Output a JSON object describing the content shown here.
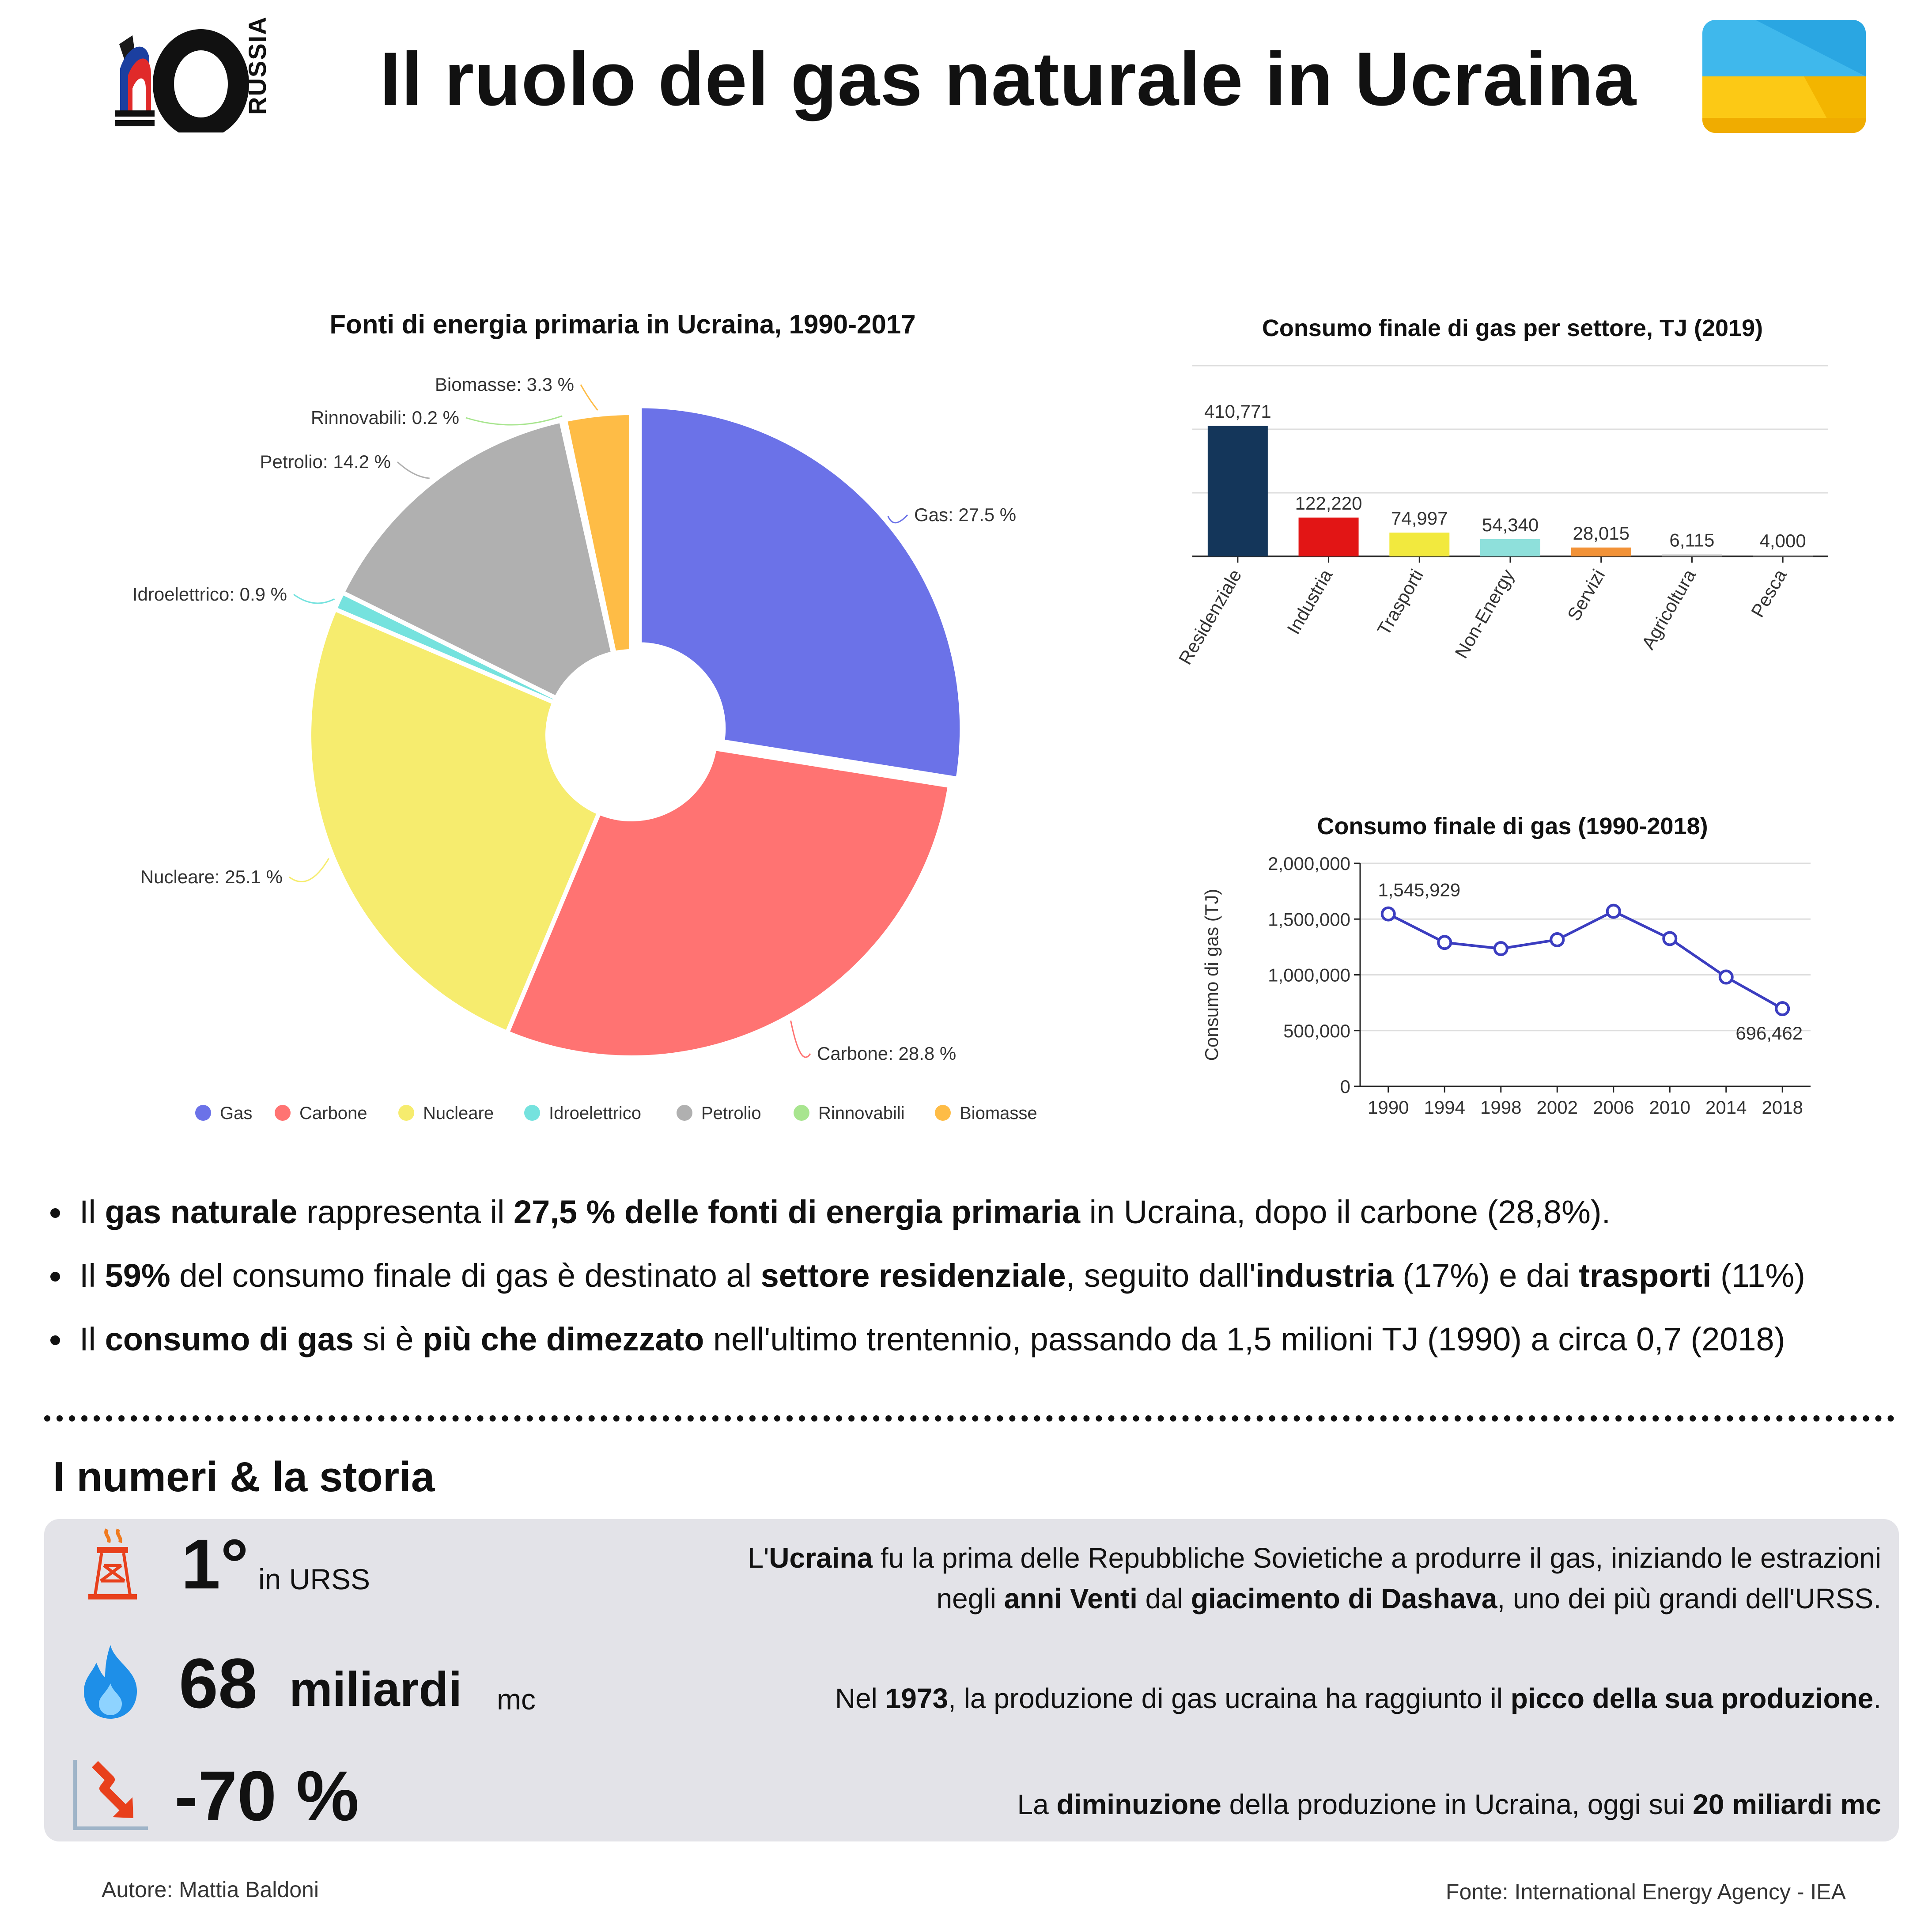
{
  "header": {
    "title": "Il ruolo del gas naturale in Ucraina",
    "logo_text": "RUSSIA",
    "flag_colors": [
      "#3FB8EC",
      "#FCC915"
    ]
  },
  "chart_data": [
    {
      "type": "pie",
      "title": "Fonti di energia primaria in Ucraina, 1990-2017",
      "legend_position": "bottom",
      "slices": [
        {
          "name": "Gas",
          "value": 27.5,
          "label": "Gas: 27.5 %",
          "color": "#6B72E8"
        },
        {
          "name": "Carbone",
          "value": 28.8,
          "label": "Carbone: 28.8 %",
          "color": "#FF7372"
        },
        {
          "name": "Nucleare",
          "value": 25.1,
          "label": "Nucleare: 25.1 %",
          "color": "#F6EC6E"
        },
        {
          "name": "Idroelettrico",
          "value": 0.9,
          "label": "Idroelettrico: 0.9 %",
          "color": "#75E2DE"
        },
        {
          "name": "Petrolio",
          "value": 14.2,
          "label": "Petrolio: 14.2 %",
          "color": "#B0B0B0"
        },
        {
          "name": "Rinnovabili",
          "value": 0.2,
          "label": "Rinnovabili: 0.2 %",
          "color": "#A8E58F"
        },
        {
          "name": "Biomasse",
          "value": 3.3,
          "label": "Biomasse: 3.3 %",
          "color": "#FEBC46"
        }
      ]
    },
    {
      "type": "bar",
      "title": "Consumo finale di gas per settore, TJ (2019)",
      "categories": [
        "Residenziale",
        "Industria",
        "Trasporti",
        "Non-Energy",
        "Servizi",
        "Agricoltura",
        "Pesca"
      ],
      "values": [
        410771,
        122220,
        74997,
        54340,
        28015,
        6115,
        4000
      ],
      "value_labels": [
        "410,771",
        "122,220",
        "74,997",
        "54,340",
        "28,015",
        "6,115",
        "4,000"
      ],
      "colors": [
        "#14365A",
        "#E21515",
        "#F2E93E",
        "#8EE0DB",
        "#F29237",
        "#BDBDBD",
        "#BDBDBD"
      ],
      "ylim": [
        0,
        600000
      ],
      "grid": true
    },
    {
      "type": "line",
      "title": "Consumo finale di gas (1990-2018)",
      "ylabel": "Consumo di gas (TJ)",
      "x": [
        "1990",
        "1994",
        "1998",
        "2002",
        "2006",
        "2010",
        "2014",
        "2018"
      ],
      "series": [
        {
          "values": [
            1545929,
            1290000,
            1235000,
            1315000,
            1570000,
            1325000,
            980000,
            696462
          ],
          "color": "#3B3DC0"
        }
      ],
      "ylim": [
        0,
        2000000
      ],
      "yticks": [
        "0",
        "500,000",
        "1,000,000",
        "1,500,000",
        "2,000,000"
      ],
      "annotations": [
        {
          "index": 0,
          "text": "1,545,929",
          "position": "above"
        },
        {
          "index": 7,
          "text": "696,462",
          "position": "below"
        }
      ],
      "grid": true
    }
  ],
  "bullets": [
    [
      {
        "t": "Il "
      },
      {
        "t": "gas naturale",
        "b": true
      },
      {
        "t": " rappresenta il "
      },
      {
        "t": "27,5 % delle fonti di energia primaria",
        "b": true
      },
      {
        "t": " in Ucraina, dopo il carbone (28,8%)."
      }
    ],
    [
      {
        "t": "Il "
      },
      {
        "t": "59%",
        "b": true
      },
      {
        "t": " del consumo finale di gas è destinato al "
      },
      {
        "t": "settore residenziale",
        "b": true
      },
      {
        "t": ", seguito dall'"
      },
      {
        "t": "industria",
        "b": true
      },
      {
        "t": " (17%) e dai "
      },
      {
        "t": "trasporti",
        "b": true
      },
      {
        "t": " (11%)"
      }
    ],
    [
      {
        "t": "Il "
      },
      {
        "t": "consumo di gas",
        "b": true
      },
      {
        "t": " si è "
      },
      {
        "t": "più che dimezzato",
        "b": true
      },
      {
        "t": " nell'ultimo trentennio, passando da 1,5 milioni TJ (1990) a circa 0,7 (2018)"
      }
    ]
  ],
  "stats": {
    "heading": "I numeri & la storia",
    "items": [
      {
        "icon": "gas-rig-icon",
        "value": "1°",
        "unit": "in URSS",
        "desc_lines": [
          [
            {
              "t": "L'"
            },
            {
              "t": "Ucraina",
              "b": true
            },
            {
              "t": " fu la prima delle Repubbliche Sovietiche a produrre il gas, iniziando le estrazioni "
            }
          ],
          [
            {
              "t": "negli "
            },
            {
              "t": "anni Venti",
              "b": true
            },
            {
              "t": " dal "
            },
            {
              "t": "giacimento di Dashava",
              "b": true
            },
            {
              "t": ", uno dei più grandi dell'URSS."
            }
          ]
        ]
      },
      {
        "icon": "gas-flame-icon",
        "value": "68",
        "value_suffix": "miliardi",
        "unit": "mc",
        "desc_lines": [
          [
            {
              "t": "Nel "
            },
            {
              "t": "1973",
              "b": true
            },
            {
              "t": ", la produzione di gas ucraina ha raggiunto il "
            },
            {
              "t": "picco della sua produzione",
              "b": true
            },
            {
              "t": "."
            }
          ]
        ]
      },
      {
        "icon": "decline-arrow-icon",
        "value": "-70 %",
        "desc_lines": [
          [
            {
              "t": "La "
            },
            {
              "t": "diminuzione",
              "b": true
            },
            {
              "t": " della produzione in Ucraina, oggi sui "
            },
            {
              "t": "20 miliardi mc",
              "b": true
            }
          ]
        ]
      }
    ]
  },
  "footer": {
    "author": "Autore: Mattia Baldoni",
    "source": "Fonte: International Energy Agency - IEA"
  }
}
